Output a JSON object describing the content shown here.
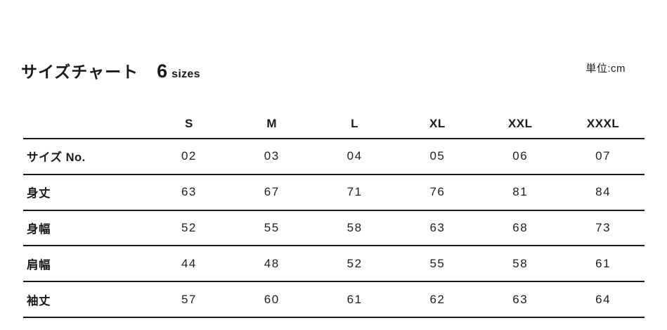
{
  "header": {
    "title": "サイズチャート",
    "size_count": "6",
    "size_word": "sizes",
    "unit_label": "単位:cm"
  },
  "colors": {
    "text": "#1a1a1a",
    "background": "#ffffff",
    "rule_line": "#1a1a1a"
  },
  "chart_data": {
    "type": "table",
    "title": "サイズチャート",
    "subtitle": "6 sizes",
    "unit": "単位:cm",
    "columns": [
      "S",
      "M",
      "L",
      "XL",
      "XXL",
      "XXXL"
    ],
    "rows": [
      {
        "label": "サイズ No.",
        "values": [
          "02",
          "03",
          "04",
          "05",
          "06",
          "07"
        ]
      },
      {
        "label": "身丈",
        "values": [
          "63",
          "67",
          "71",
          "76",
          "81",
          "84"
        ]
      },
      {
        "label": "身幅",
        "values": [
          "52",
          "55",
          "58",
          "63",
          "68",
          "73"
        ]
      },
      {
        "label": "肩幅",
        "values": [
          "44",
          "48",
          "52",
          "55",
          "58",
          "61"
        ]
      },
      {
        "label": "袖丈",
        "values": [
          "57",
          "60",
          "61",
          "62",
          "63",
          "64"
        ]
      }
    ]
  }
}
